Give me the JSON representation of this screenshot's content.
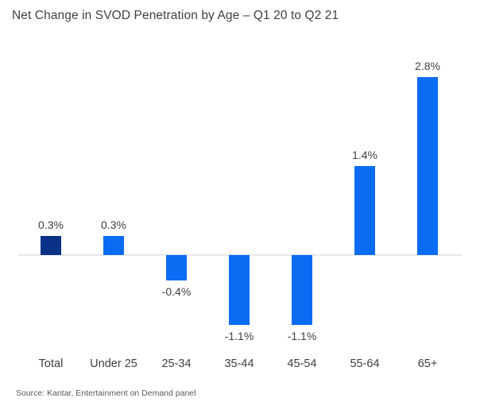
{
  "source": "Source: Kantar, Entertainment on Demand panel",
  "colors": {
    "highlight_navy": "#0a3286",
    "brand_blue": "#0b6cf3",
    "axis_line": "#e8e8e8",
    "label_text": "#3f3f3f",
    "title_text": "#414141",
    "source_text": "#595959",
    "background": "#ffffff"
  },
  "chart_data": {
    "type": "bar",
    "title": "Net Change in SVOD Penetration by Age – Q1 20 to Q2 21",
    "xlabel": "",
    "ylabel": "",
    "categories": [
      "Total",
      "Under 25",
      "25-34",
      "35-44",
      "45-54",
      "55-64",
      "65+"
    ],
    "values": [
      0.3,
      0.3,
      -0.4,
      -1.1,
      -1.1,
      1.4,
      2.8
    ],
    "value_labels": [
      "0.3%",
      "0.3%",
      "-0.4%",
      "-1.1%",
      "-1.1%",
      "1.4%",
      "2.8%"
    ],
    "bar_colors": [
      "#0a3286",
      "#0b6cf3",
      "#0b6cf3",
      "#0b6cf3",
      "#0b6cf3",
      "#0b6cf3",
      "#0b6cf3"
    ],
    "ylim": [
      -1.5,
      3.0
    ],
    "grid": false,
    "legend": false,
    "axis_ticks": false,
    "baseline": 0
  }
}
